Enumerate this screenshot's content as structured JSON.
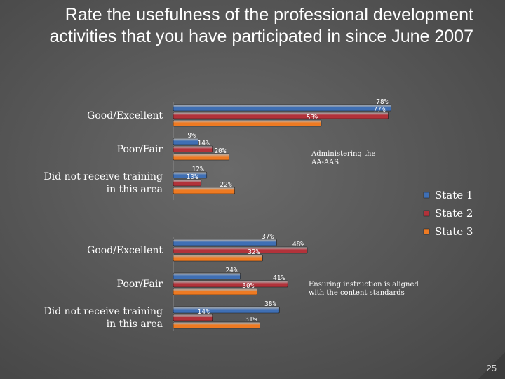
{
  "slide": {
    "title": "Rate the usefulness of the professional development activities that you have participated in since June 2007",
    "number": "25"
  },
  "colors": {
    "State 1": "#3f6fb4",
    "State 2": "#b2323a",
    "State 3": "#ee7a22"
  },
  "chart_data": [
    {
      "type": "bar",
      "orientation": "horizontal",
      "title": "",
      "annotation": [
        "Administering the",
        "AA-AAS"
      ],
      "categories": [
        [
          "Good/Excellent"
        ],
        [
          "Poor/Fair"
        ],
        [
          "Did not receive training",
          "in this area"
        ]
      ],
      "series": [
        {
          "name": "State 1",
          "values": [
            78,
            9,
            12
          ]
        },
        {
          "name": "State 2",
          "values": [
            77,
            14,
            10
          ]
        },
        {
          "name": "State 3",
          "values": [
            53,
            20,
            22
          ]
        }
      ],
      "value_unit": "%",
      "xlim": [
        0,
        100
      ]
    },
    {
      "type": "bar",
      "orientation": "horizontal",
      "title": "",
      "annotation": [
        "Ensuring instruction is aligned",
        "with the content standards"
      ],
      "categories": [
        [
          "Good/Excellent"
        ],
        [
          "Poor/Fair"
        ],
        [
          "Did not receive training",
          "in this area"
        ]
      ],
      "series": [
        {
          "name": "State 1",
          "values": [
            37,
            24,
            38
          ]
        },
        {
          "name": "State 2",
          "values": [
            48,
            41,
            14
          ]
        },
        {
          "name": "State 3",
          "values": [
            32,
            30,
            31
          ]
        }
      ],
      "value_unit": "%",
      "xlim": [
        0,
        100
      ]
    }
  ],
  "legend": {
    "position": "right",
    "entries": [
      "State 1",
      "State 2",
      "State 3"
    ]
  }
}
